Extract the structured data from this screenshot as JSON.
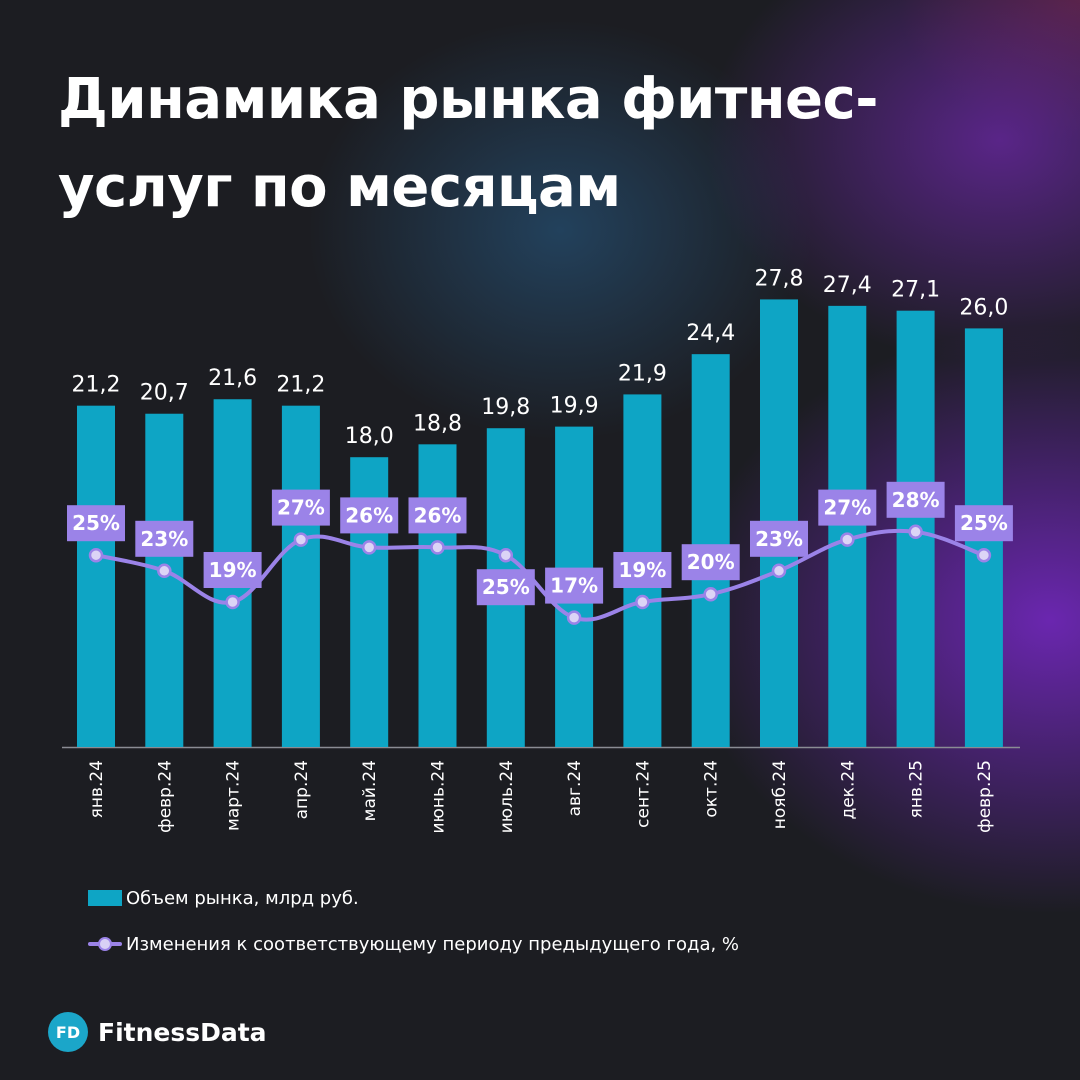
{
  "title": "Динамика рынка фитнес-услуг по месяцам",
  "brand": {
    "badge": "FD",
    "name": "FitnessData"
  },
  "colors": {
    "bar": "#0ea5c5",
    "line": "#9b83e8",
    "label_bg": "#9b83e8",
    "background": "#1c1d22"
  },
  "chart_data": {
    "type": "bar",
    "categories": [
      "янв.24",
      "февр.24",
      "март.24",
      "апр.24",
      "май.24",
      "июнь.24",
      "июль.24",
      "авг.24",
      "сент.24",
      "окт.24",
      "нояб.24",
      "дек.24",
      "янв.25",
      "февр.25"
    ],
    "series": [
      {
        "name": "Объем рынка, млрд руб.",
        "type": "bar",
        "values": [
          21.2,
          20.7,
          21.6,
          21.2,
          18.0,
          18.8,
          19.8,
          19.9,
          21.9,
          24.4,
          27.8,
          27.4,
          27.1,
          26.0
        ],
        "labels": [
          "21,2",
          "20,7",
          "21,6",
          "21,2",
          "18,0",
          "18,8",
          "19,8",
          "19,9",
          "21,9",
          "24,4",
          "27,8",
          "27,4",
          "27,1",
          "26,0"
        ]
      },
      {
        "name": "Изменения к соответствующему периоду предыдущего года, %",
        "type": "line",
        "values": [
          25,
          23,
          19,
          27,
          26,
          26,
          25,
          17,
          19,
          20,
          23,
          27,
          28,
          25
        ],
        "labels": [
          "25%",
          "23%",
          "19%",
          "27%",
          "26%",
          "26%",
          "25%",
          "17%",
          "19%",
          "20%",
          "23%",
          "27%",
          "28%",
          "25%"
        ]
      }
    ],
    "legend": "bottom-left",
    "grid": false
  }
}
